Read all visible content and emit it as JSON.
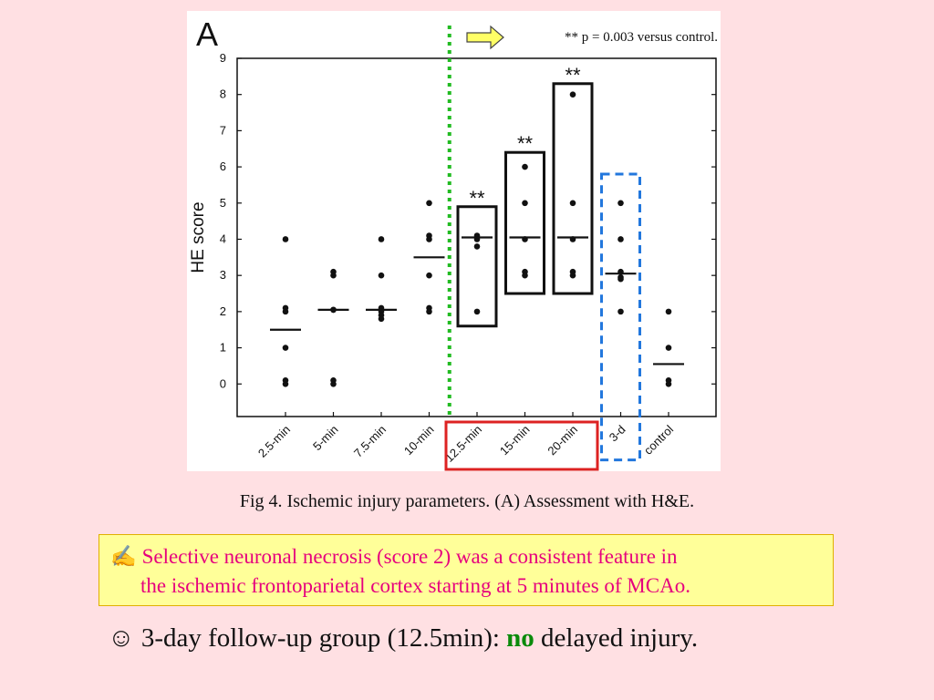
{
  "chart_data": {
    "type": "scatter",
    "panel_label": "A",
    "ylabel": "HE score",
    "ylim": [
      -0.9,
      9
    ],
    "yticks": [
      0,
      1,
      2,
      3,
      4,
      5,
      6,
      7,
      8,
      9
    ],
    "categories": [
      "2.5-min",
      "5-min",
      "7.5-min",
      "10-min",
      "12.5-min",
      "15-min",
      "20-min",
      "3-d",
      "control"
    ],
    "points": [
      [
        4,
        2.1,
        2,
        1,
        0.1,
        0
      ],
      [
        3.1,
        3,
        2.05,
        2.05,
        0.1,
        0
      ],
      [
        4,
        3,
        2.1,
        2,
        1.9,
        1.8
      ],
      [
        5,
        4.1,
        4,
        3,
        2.1,
        2
      ],
      [
        4.1,
        4,
        3.8,
        2
      ],
      [
        6,
        5,
        4,
        3.1,
        3
      ],
      [
        8,
        5,
        4,
        3.1,
        3
      ],
      [
        5,
        4,
        3.1,
        2.95,
        2.9,
        2
      ],
      [
        2,
        1,
        0.1,
        0
      ]
    ],
    "medians": [
      1.5,
      2.05,
      2.05,
      3.5,
      4.05,
      4.05,
      4.05,
      3.05,
      0.55
    ],
    "significance": [
      {
        "category": "12.5-min",
        "label": "**",
        "box": [
          1.6,
          4.9
        ]
      },
      {
        "category": "15-min",
        "label": "**",
        "box": [
          2.5,
          6.4
        ]
      },
      {
        "category": "20-min",
        "label": "**",
        "box": [
          2.5,
          8.3
        ]
      }
    ],
    "highlight_3d_box": [
      -2.1,
      5.8
    ],
    "annotation": "** p = 0.003 versus control.",
    "colors": {
      "points": "#111111",
      "threshold_line": "#22bb22",
      "group_box": "#dd2222",
      "follow_up_box": "#2277dd",
      "arrow_fill": "#ffff66"
    }
  },
  "caption": "Fig 4. Ischemic injury parameters. (A) Assessment with H&E.",
  "note": {
    "icon": "✍",
    "line1": "Selective neuronal necrosis (score 2) was a consistent feature in",
    "line2": "the ischemic frontoparietal cortex starting at 5 minutes of MCAo."
  },
  "summary": {
    "icon": "☺",
    "before": "3-day follow-up group (12.5min): ",
    "highlight": "no",
    "after": " delayed injury."
  }
}
